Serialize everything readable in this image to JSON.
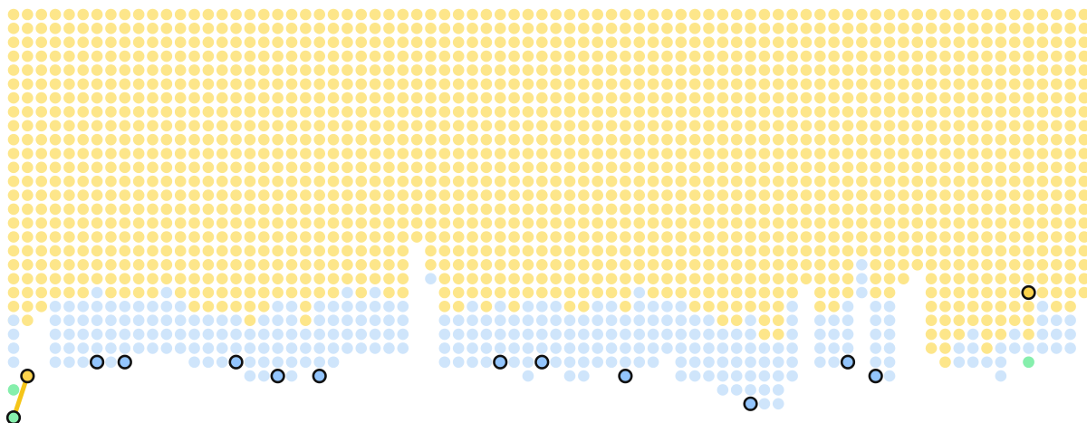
{
  "board": {
    "columns": 78,
    "dot_colors": {
      "yellow": "#fde68a",
      "blue": "#cfe5fb",
      "green": "#86efac"
    },
    "marker_colors": {
      "yellow": "#fcd34d",
      "blue": "#93c5fd",
      "green": "#86efac",
      "outline": "#111111"
    },
    "path_color": "#f5c518",
    "columns_spec": [
      {
        "y": 22,
        "b": [
          [
            22,
            25
          ]
        ]
      },
      {
        "y": 22,
        "b": [
          [
            26,
            26
          ]
        ]
      },
      {
        "y": 21
      },
      {
        "y": 20,
        "b": [
          [
            21,
            25
          ]
        ]
      },
      {
        "y": 20,
        "b": [
          [
            21,
            25
          ]
        ]
      },
      {
        "y": 20,
        "b": [
          [
            21,
            25
          ]
        ]
      },
      {
        "y": 19,
        "b": [
          [
            20,
            25
          ]
        ]
      },
      {
        "y": 20,
        "b": [
          [
            21,
            25
          ]
        ]
      },
      {
        "y": 20,
        "b": [
          [
            21,
            25
          ]
        ]
      },
      {
        "y": 20,
        "b": [
          [
            21,
            24
          ]
        ]
      },
      {
        "y": 20,
        "b": [
          [
            21,
            24
          ]
        ]
      },
      {
        "y": 19,
        "b": [
          [
            20,
            24
          ]
        ]
      },
      {
        "y": 20,
        "b": [
          [
            21,
            24
          ]
        ]
      },
      {
        "y": 21,
        "b": [
          [
            22,
            25
          ]
        ]
      },
      {
        "y": 21,
        "b": [
          [
            22,
            25
          ]
        ]
      },
      {
        "y": 21,
        "b": [
          [
            22,
            25
          ]
        ]
      },
      {
        "y": 21,
        "b": [
          [
            22,
            25
          ]
        ]
      },
      {
        "y": 22,
        "b": [
          [
            23,
            26
          ]
        ]
      },
      {
        "y": 21,
        "b": [
          [
            22,
            26
          ]
        ]
      },
      {
        "y": 20,
        "b": [
          [
            21,
            25
          ]
        ]
      },
      {
        "y": 20,
        "b": [
          [
            21,
            26
          ]
        ]
      },
      {
        "y": 22,
        "b": [
          [
            23,
            25
          ]
        ]
      },
      {
        "y": 20,
        "b": [
          [
            21,
            25
          ]
        ]
      },
      {
        "y": 20,
        "b": [
          [
            21,
            25
          ]
        ]
      },
      {
        "y": 19,
        "b": [
          [
            20,
            24
          ]
        ]
      },
      {
        "y": 20,
        "b": [
          [
            21,
            24
          ]
        ]
      },
      {
        "y": 19,
        "b": [
          [
            20,
            24
          ]
        ]
      },
      {
        "y": 20,
        "b": [
          [
            21,
            24
          ]
        ]
      },
      {
        "y": 20,
        "b": [
          [
            21,
            24
          ]
        ]
      },
      {
        "y": 16
      },
      {
        "y": 18,
        "b": [
          [
            19,
            19
          ]
        ]
      },
      {
        "y": 21,
        "b": [
          [
            22,
            25
          ]
        ]
      },
      {
        "y": 21,
        "b": [
          [
            22,
            25
          ]
        ]
      },
      {
        "y": 20,
        "b": [
          [
            21,
            25
          ]
        ]
      },
      {
        "y": 21,
        "b": [
          [
            22,
            25
          ]
        ]
      },
      {
        "y": 20,
        "b": [
          [
            21,
            25
          ]
        ]
      },
      {
        "y": 21,
        "b": [
          [
            22,
            25
          ]
        ]
      },
      {
        "y": 20,
        "b": [
          [
            21,
            26
          ]
        ]
      },
      {
        "y": 20,
        "b": [
          [
            21,
            25
          ]
        ]
      },
      {
        "y": 20,
        "b": [
          [
            21,
            25
          ]
        ]
      },
      {
        "y": 21,
        "b": [
          [
            22,
            26
          ]
        ]
      },
      {
        "y": 21,
        "b": [
          [
            22,
            26
          ]
        ]
      },
      {
        "y": 20,
        "b": [
          [
            21,
            25
          ]
        ]
      },
      {
        "y": 20,
        "b": [
          [
            21,
            25
          ]
        ]
      },
      {
        "y": 21,
        "b": [
          [
            22,
            26
          ]
        ]
      },
      {
        "y": 19,
        "b": [
          [
            20,
            25
          ]
        ]
      },
      {
        "y": 20,
        "b": [
          [
            21,
            25
          ]
        ]
      },
      {
        "y": 20,
        "b": [
          [
            21,
            24
          ]
        ]
      },
      {
        "y": 20,
        "b": [
          [
            21,
            26
          ]
        ]
      },
      {
        "y": 21,
        "b": [
          [
            22,
            26
          ]
        ]
      },
      {
        "y": 21,
        "b": [
          [
            22,
            26
          ]
        ]
      },
      {
        "y": 22,
        "b": [
          [
            23,
            27
          ]
        ]
      },
      {
        "y": 22,
        "b": [
          [
            23,
            27
          ]
        ]
      },
      {
        "y": 21,
        "b": [
          [
            22,
            27
          ]
        ]
      },
      {
        "y": 23,
        "b": [
          [
            24,
            28
          ]
        ]
      },
      {
        "y": 23,
        "b": [
          [
            24,
            28
          ]
        ]
      },
      {
        "y": 20,
        "b": [
          [
            21,
            26
          ]
        ]
      },
      {
        "y": 19
      },
      {
        "y": 21,
        "b": [
          [
            22,
            25
          ]
        ]
      },
      {
        "y": 21,
        "b": [
          [
            22,
            25
          ]
        ]
      },
      {
        "y": 20,
        "b": [
          [
            21,
            25
          ]
        ]
      },
      {
        "y": 17,
        "b": [
          [
            18,
            20
          ]
        ]
      },
      {
        "y": 20,
        "b": [
          [
            21,
            25
          ]
        ]
      },
      {
        "y": 20,
        "b": [
          [
            21,
            26
          ]
        ]
      },
      {
        "y": 19
      },
      {
        "y": 18
      },
      {
        "y": 24
      },
      {
        "y": 24,
        "e": [
          25,
          25
        ]
      },
      {
        "y": 23,
        "b": [
          [
            24,
            25
          ]
        ]
      },
      {
        "y": 22,
        "b": [
          [
            23,
            25
          ]
        ]
      },
      {
        "y": 24,
        "b": [
          [
            25,
            25
          ]
        ]
      },
      {
        "y": 23,
        "b": [
          [
            24,
            26
          ]
        ]
      },
      {
        "y": 22,
        "b": [
          [
            23,
            24
          ]
        ]
      },
      {
        "y": 23,
        "b": [
          [
            24,
            25
          ]
        ]
      },
      {
        "y": 20,
        "b": [
          [
            21,
            24
          ]
        ]
      },
      {
        "y": 21,
        "b": [
          [
            22,
            24
          ]
        ]
      },
      {
        "y": 21,
        "b": [
          [
            22,
            24
          ]
        ]
      },
      {
        "y": 20
      }
    ],
    "extra_dots": [
      {
        "col": 0,
        "row": 27,
        "color": "green"
      },
      {
        "col": 73,
        "row": 25,
        "color": "green"
      }
    ],
    "markers": [
      {
        "col": 0,
        "row": 29,
        "color": "green"
      },
      {
        "col": 1,
        "row": 26,
        "color": "yellow"
      },
      {
        "col": 6,
        "row": 25,
        "color": "blue"
      },
      {
        "col": 8,
        "row": 25,
        "color": "blue"
      },
      {
        "col": 16,
        "row": 25,
        "color": "blue"
      },
      {
        "col": 19,
        "row": 26,
        "color": "blue"
      },
      {
        "col": 22,
        "row": 26,
        "color": "blue"
      },
      {
        "col": 35,
        "row": 25,
        "color": "blue"
      },
      {
        "col": 38,
        "row": 25,
        "color": "blue"
      },
      {
        "col": 44,
        "row": 26,
        "color": "blue"
      },
      {
        "col": 53,
        "row": 28,
        "color": "blue"
      },
      {
        "col": 60,
        "row": 25,
        "color": "blue"
      },
      {
        "col": 62,
        "row": 26,
        "color": "blue"
      },
      {
        "col": 73,
        "row": 20,
        "color": "yellow"
      }
    ],
    "path": [
      [
        0,
        29
      ],
      [
        1,
        26
      ]
    ]
  }
}
